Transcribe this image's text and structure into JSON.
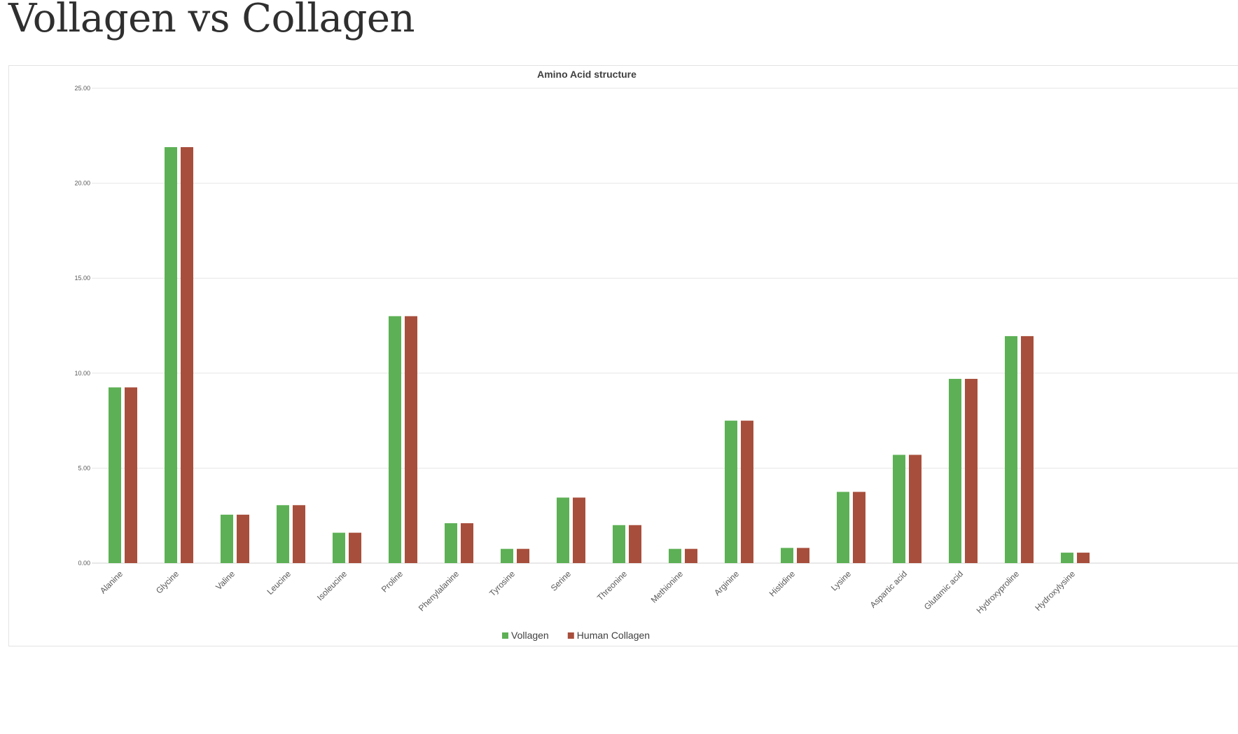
{
  "page": {
    "title": "Vollagen vs Collagen"
  },
  "chart_data": {
    "type": "bar",
    "title": "Amino Acid structure",
    "xlabel": "",
    "ylabel": "",
    "ylim": [
      0,
      25
    ],
    "yticks": [
      "0.00",
      "5.00",
      "10.00",
      "15.00",
      "20.00",
      "25.00"
    ],
    "grid": true,
    "legend_position": "bottom",
    "categories": [
      "Alanine",
      "Glycine",
      "Valine",
      "Leucine",
      "Isoleucine",
      "Proline",
      "Phenylalanine",
      "Tyrosine",
      "Serine",
      "Threonine",
      "Methionine",
      "Arginine",
      "Histidine",
      "Lysine",
      "Aspartic acid",
      "Glutamic acid",
      "Hydroxyproline",
      "Hydroxylysine"
    ],
    "series": [
      {
        "name": "Vollagen",
        "color": "#5db055",
        "values": [
          9.25,
          21.9,
          2.55,
          3.05,
          1.6,
          13.0,
          2.1,
          0.75,
          3.45,
          2.0,
          0.75,
          7.5,
          0.8,
          3.75,
          5.7,
          9.7,
          11.95,
          0.55
        ]
      },
      {
        "name": "Human Collagen",
        "color": "#a84e3c",
        "values": [
          9.25,
          21.9,
          2.55,
          3.05,
          1.6,
          13.0,
          2.1,
          0.75,
          3.45,
          2.0,
          0.75,
          7.5,
          0.8,
          3.75,
          5.7,
          9.7,
          11.95,
          0.55
        ]
      }
    ]
  }
}
